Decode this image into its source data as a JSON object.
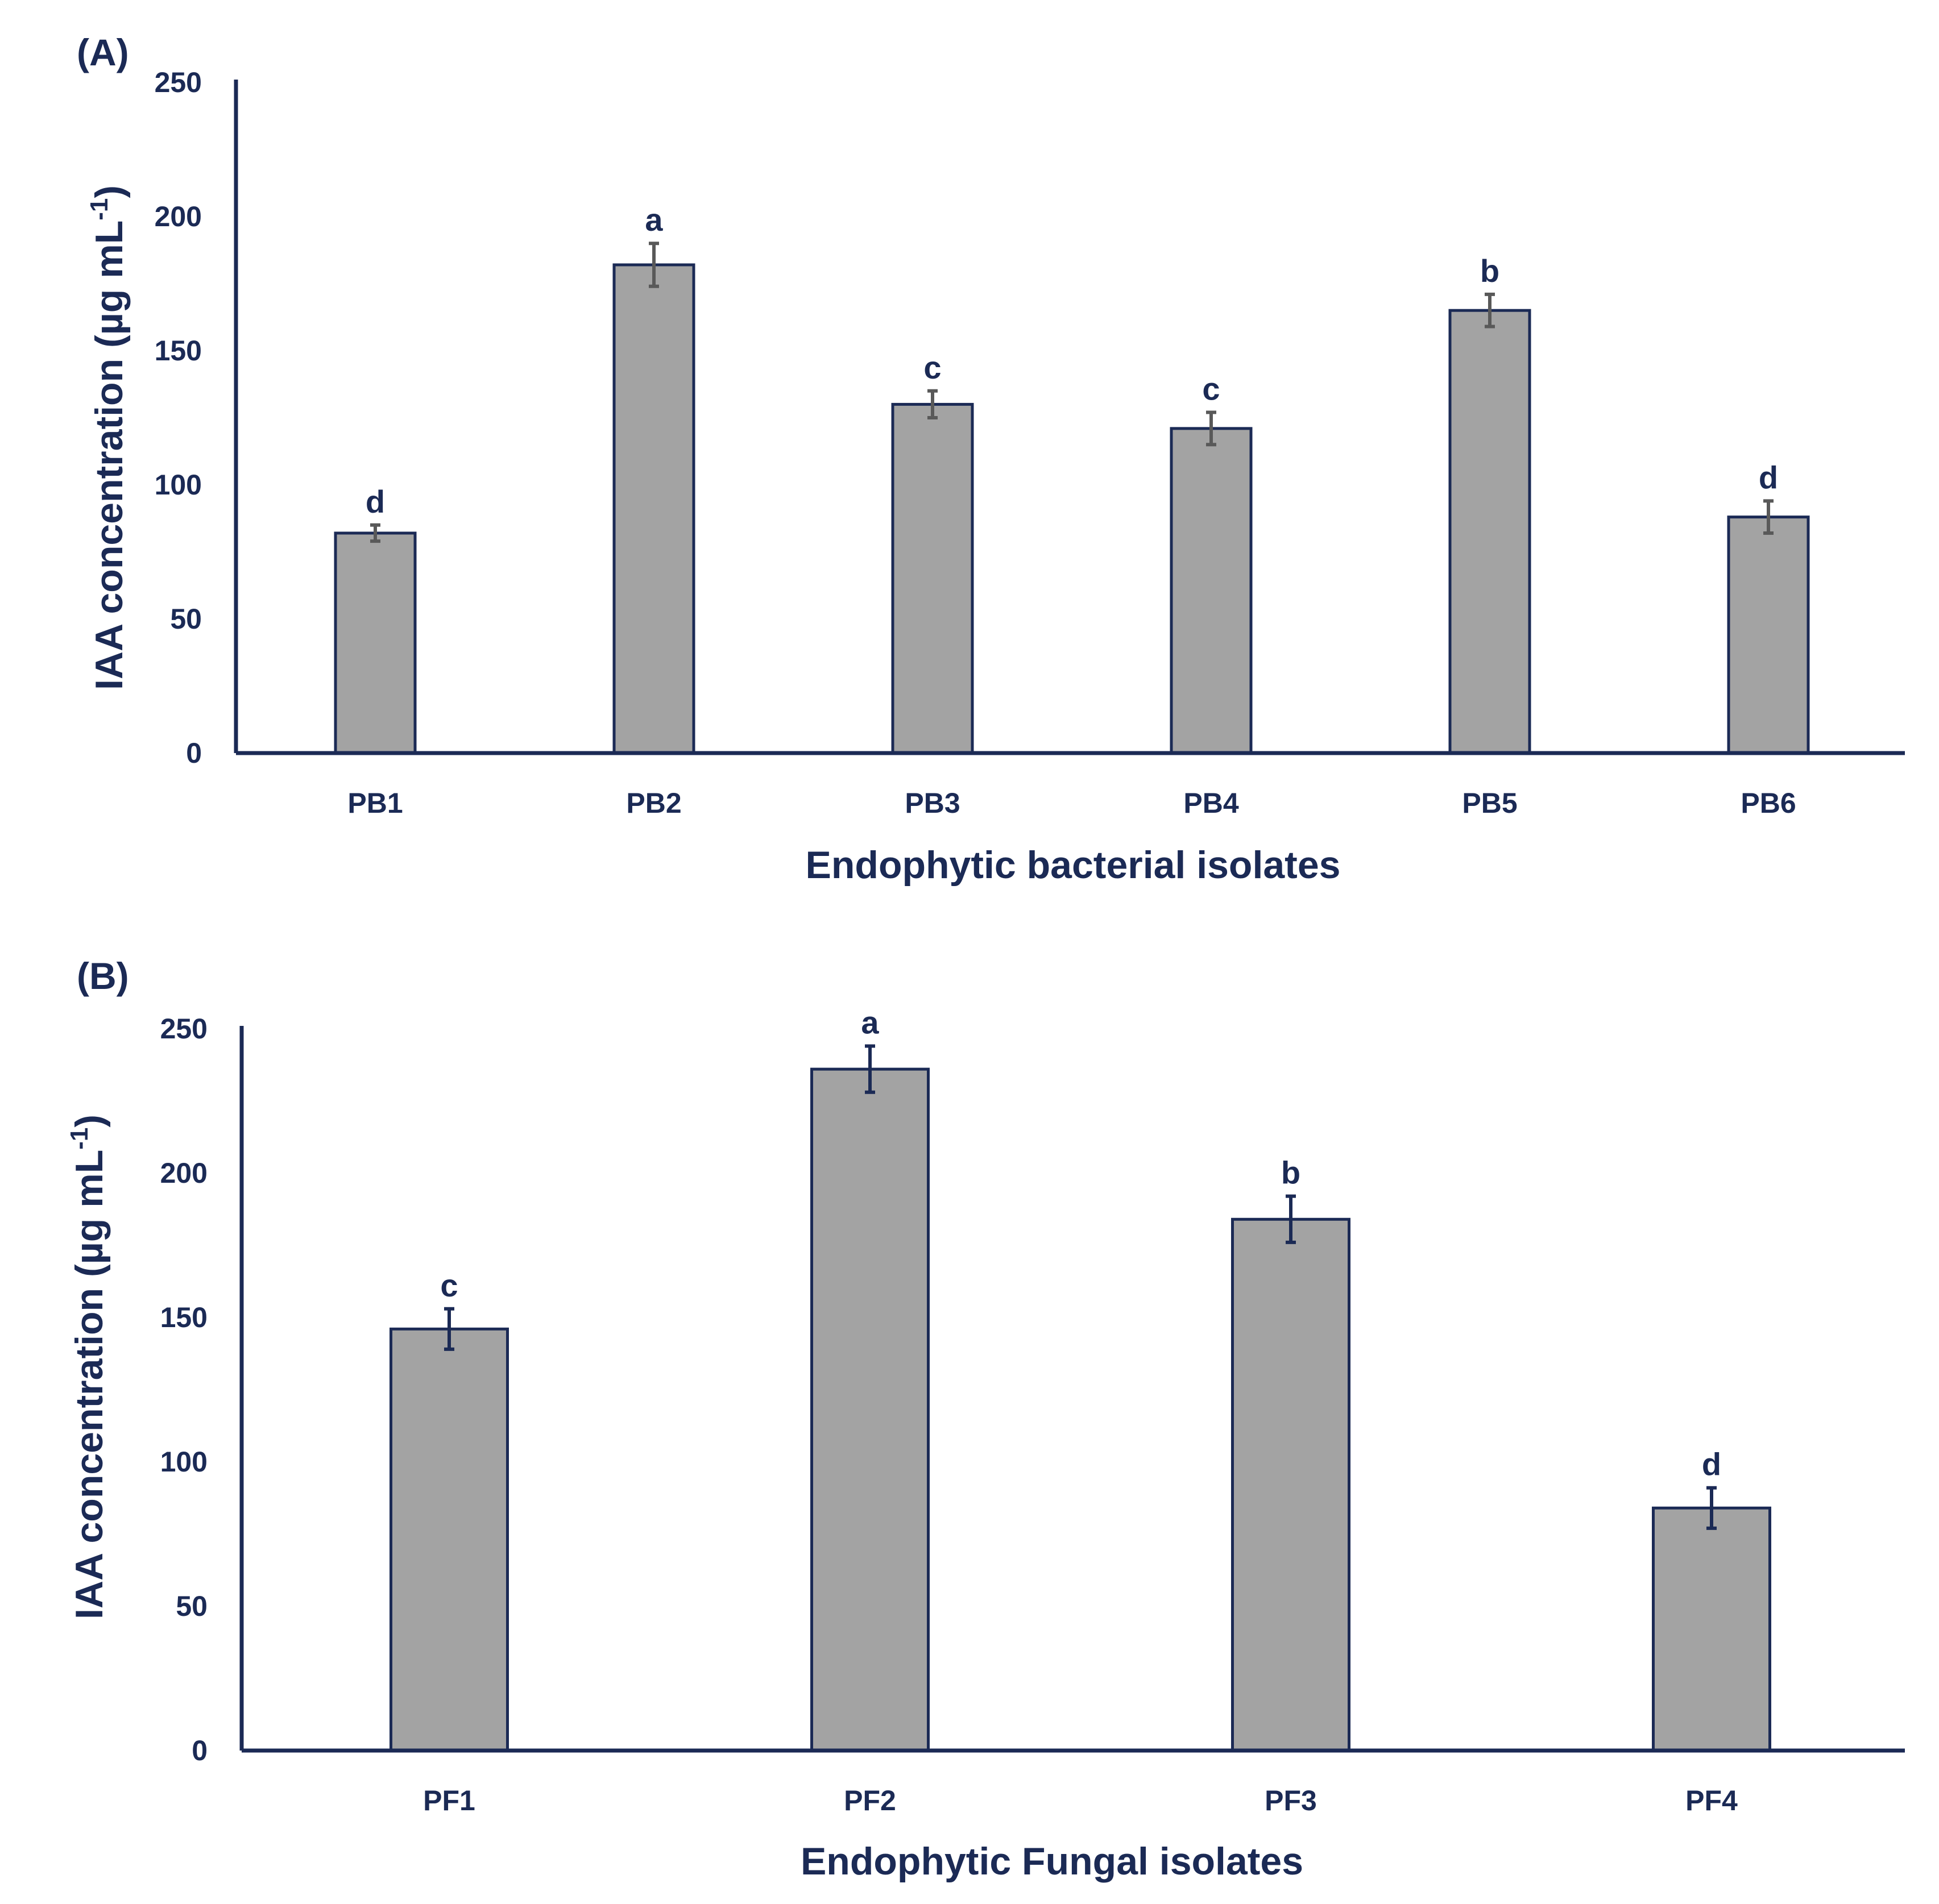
{
  "chart_data": [
    {
      "type": "bar",
      "panel_label": "(A)",
      "categories": [
        "PB1",
        "PB2",
        "PB3",
        "PB4",
        "PB5",
        "PB6"
      ],
      "values": [
        82,
        182,
        130,
        121,
        165,
        88
      ],
      "errors": [
        3,
        8,
        5,
        6,
        6,
        6
      ],
      "significance_letters": [
        "d",
        "a",
        "c",
        "c",
        "b",
        "d"
      ],
      "xlabel": "Endophytic bacterial isolates",
      "ylabel_main": "IAA concentration (µg mL",
      "ylabel_sup": "-1",
      "ylabel_end": ")",
      "ylim": [
        0,
        250
      ],
      "yticks": [
        "0",
        "50",
        "100",
        "150",
        "200",
        "250"
      ],
      "error_bar_color": "#595959"
    },
    {
      "type": "bar",
      "panel_label": "(B)",
      "categories": [
        "PF1",
        "PF2",
        "PF3",
        "PF4"
      ],
      "values": [
        146,
        236,
        184,
        84
      ],
      "errors": [
        7,
        8,
        8,
        7
      ],
      "significance_letters": [
        "c",
        "a",
        "b",
        "d"
      ],
      "xlabel": "Endophytic Fungal isolates",
      "ylabel_main": "IAA concentration (µg mL",
      "ylabel_sup": "-1",
      "ylabel_end": ")",
      "ylim": [
        0,
        250
      ],
      "yticks": [
        "0",
        "50",
        "100",
        "150",
        "200",
        "250"
      ],
      "error_bar_color": "#1b2a55"
    }
  ],
  "colors": {
    "bar_fill": "#a3a3a3",
    "axis": "#1b2a55"
  }
}
